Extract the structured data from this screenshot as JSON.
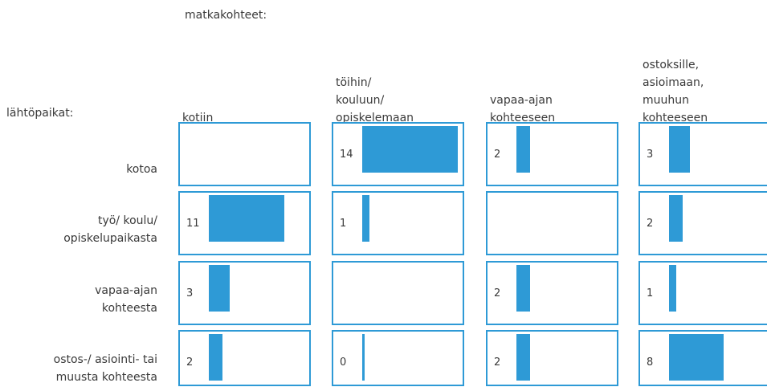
{
  "chart_data": {
    "type": "matrix-bar",
    "column_axis_label": "matkakohteet:",
    "row_axis_label": "lähtöpaikat:",
    "columns": [
      "kotiin",
      "töihin/\nkouluun/\nopiskelemaan",
      "vapaa-ajan\nkohteeseen",
      "ostoksille,\nasioimaan,\nmuuhun\nkohteeseen"
    ],
    "rows": [
      "kotoa",
      "työ/ koulu/\nopiskelupaikasta",
      "vapaa-ajan\nkohteesta",
      "ostos-/ asiointi- tai\nmuusta kohteesta"
    ],
    "values": [
      [
        null,
        14,
        2,
        3
      ],
      [
        11,
        1,
        null,
        2
      ],
      [
        3,
        null,
        2,
        1
      ],
      [
        2,
        0,
        2,
        8
      ]
    ],
    "color": "#2e9ad6"
  }
}
